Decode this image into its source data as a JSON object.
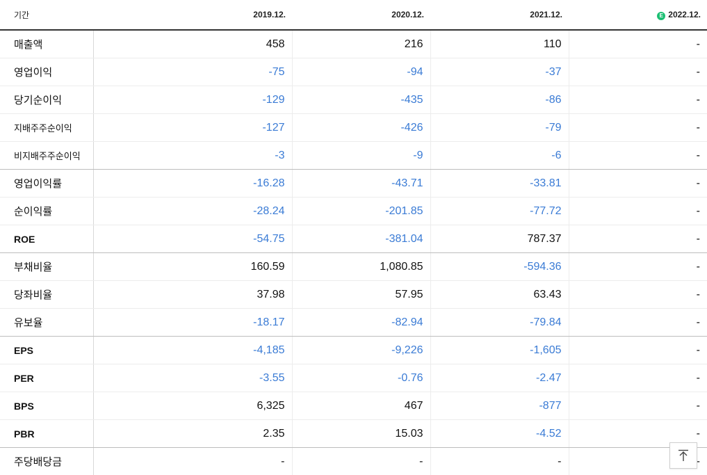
{
  "header": {
    "period_label": "기간",
    "columns": [
      "2019.12.",
      "2020.12.",
      "2021.12.",
      "2022.12."
    ],
    "estimate_badge": "E"
  },
  "rows": [
    {
      "label": "매출액",
      "values": [
        "458",
        "216",
        "110",
        "-"
      ]
    },
    {
      "label": "영업이익",
      "values": [
        "-75",
        "-94",
        "-37",
        "-"
      ]
    },
    {
      "label": "당기순이익",
      "values": [
        "-129",
        "-435",
        "-86",
        "-"
      ]
    },
    {
      "label": "지배주주순이익",
      "values": [
        "-127",
        "-426",
        "-79",
        "-"
      ]
    },
    {
      "label": "비지배주주순이익",
      "values": [
        "-3",
        "-9",
        "-6",
        "-"
      ]
    },
    {
      "label": "영업이익률",
      "values": [
        "-16.28",
        "-43.71",
        "-33.81",
        "-"
      ]
    },
    {
      "label": "순이익률",
      "values": [
        "-28.24",
        "-201.85",
        "-77.72",
        "-"
      ]
    },
    {
      "label": "ROE",
      "values": [
        "-54.75",
        "-381.04",
        "787.37",
        "-"
      ]
    },
    {
      "label": "부채비율",
      "values": [
        "160.59",
        "1,080.85",
        "-594.36",
        "-"
      ]
    },
    {
      "label": "당좌비율",
      "values": [
        "37.98",
        "57.95",
        "63.43",
        "-"
      ]
    },
    {
      "label": "유보율",
      "values": [
        "-18.17",
        "-82.94",
        "-79.84",
        "-"
      ]
    },
    {
      "label": "EPS",
      "values": [
        "-4,185",
        "-9,226",
        "-1,605",
        "-"
      ]
    },
    {
      "label": "PER",
      "values": [
        "-3.55",
        "-0.76",
        "-2.47",
        "-"
      ]
    },
    {
      "label": "BPS",
      "values": [
        "6,325",
        "467",
        "-877",
        "-"
      ]
    },
    {
      "label": "PBR",
      "values": [
        "2.35",
        "15.03",
        "-4.52",
        "-"
      ]
    },
    {
      "label": "주당배당금",
      "values": [
        "-",
        "-",
        "-",
        "-"
      ]
    }
  ],
  "colors": {
    "negative": "#3a7bd5",
    "estimate_badge": "#1cbf73"
  },
  "scroll_top_icon": "arrow-up-to-top-icon"
}
